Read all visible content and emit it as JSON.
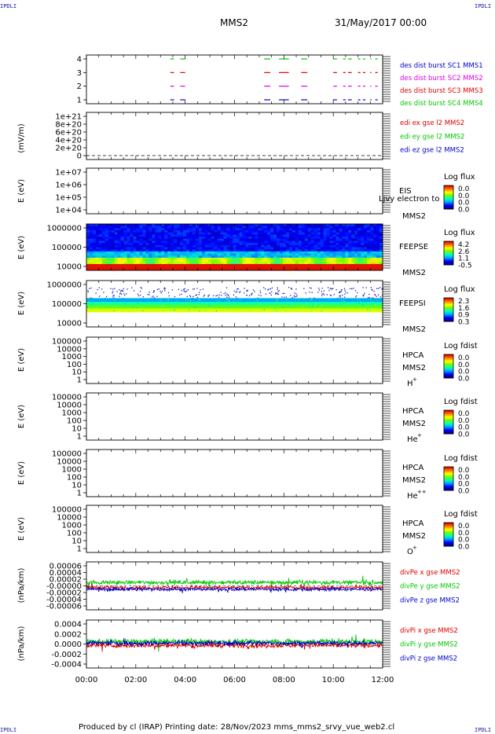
{
  "corner_label": "IPDLI",
  "header": {
    "title": "MMS2",
    "date": "31/May/2017 00:00"
  },
  "footer": {
    "text": "Produced by cl (IRAP)   Printing date: 28/Nov/2023   mms_mms2_srvy_vue_web2.cl"
  },
  "colors": {
    "black": "#000000",
    "red": "#e00000",
    "green": "#00c800",
    "blue": "#0000d0",
    "magenta": "#e000e0"
  },
  "chart_data": {
    "type": "multi-panel time series",
    "x_ticks": [
      "00:00",
      "02:00",
      "04:00",
      "06:00",
      "08:00",
      "10:00",
      "12:00"
    ],
    "xlim_hours": [
      0,
      12
    ],
    "panels": [
      {
        "id": "burst",
        "type": "line",
        "ticks": [
          "4",
          "3",
          "2",
          "1"
        ],
        "legend": [
          {
            "text": "des dist burst SC1 MMS1",
            "color": "#0000d0"
          },
          {
            "text": "des dist burst SC2 MMS2",
            "color": "#e000e0"
          },
          {
            "text": "des dist burst SC3 MMS3",
            "color": "#e00000"
          },
          {
            "text": "des dist burst SC4 MMS4",
            "color": "#00c800"
          }
        ],
        "burst_intervals_hours": [
          [
            3.4,
            3.55
          ],
          [
            3.8,
            4.0
          ],
          [
            7.2,
            7.45
          ],
          [
            7.8,
            8.2
          ],
          [
            8.7,
            8.95
          ],
          [
            10.0,
            10.15
          ],
          [
            10.4,
            10.5
          ],
          [
            10.6,
            10.75
          ],
          [
            11.0,
            11.1
          ],
          [
            11.2,
            11.3
          ],
          [
            11.5,
            11.55
          ],
          [
            11.7,
            11.8
          ]
        ]
      },
      {
        "id": "efield",
        "type": "line",
        "ylabel": "(mV/m)",
        "ticks": [
          "1e+21",
          "8e+20",
          "6e+20",
          "4e+20",
          "2e+20",
          "0"
        ],
        "legend": [
          {
            "text": "edi ex gse l2 MMS2",
            "color": "#e00000"
          },
          {
            "text": "edi ey gse l2 MMS2",
            "color": "#00c800"
          },
          {
            "text": "edi ez gse l2 MMS2",
            "color": "#0000d0"
          }
        ]
      },
      {
        "id": "eis",
        "type": "heatmap",
        "ylabel": "E (eV)",
        "ticks": [
          "1e+07",
          "1e+06",
          "1e+05",
          "1e+04"
        ],
        "labels": [
          "EIS",
          "MMS2"
        ],
        "overlay_text": "Ljvy electron to",
        "cbar_title": "Log flux",
        "cbar_values": [
          "0.0",
          "0.0",
          "0.0",
          "0.0"
        ]
      },
      {
        "id": "feepse",
        "type": "heatmap",
        "ylabel": "E (eV)",
        "ticks": [
          "1000000",
          "100000",
          "10000"
        ],
        "labels": [
          "FEEPSE",
          "MMS2"
        ],
        "cbar_title": "Log flux",
        "cbar_values": [
          "4.2",
          "2.6",
          "1.1",
          "-0.5"
        ]
      },
      {
        "id": "feepsi",
        "type": "heatmap",
        "ylabel": "E (eV)",
        "ticks": [
          "1000000",
          "100000",
          "10000"
        ],
        "labels": [
          "FEEPSI",
          "MMS2"
        ],
        "cbar_title": "Log flux",
        "cbar_values": [
          "2.3",
          "1.6",
          "0.9",
          "0.3"
        ]
      },
      {
        "id": "hpca_h",
        "type": "heatmap",
        "ylabel": "E (eV)",
        "ticks": [
          "100000",
          "10000",
          "1000",
          "100",
          "10",
          "1"
        ],
        "labels": [
          "HPCA",
          "MMS2"
        ],
        "species": "H",
        "charge": "+",
        "cbar_title": "Log fdist",
        "cbar_values": [
          "0.0",
          "0.0",
          "0.0",
          "0.0"
        ]
      },
      {
        "id": "hpca_he",
        "type": "heatmap",
        "ylabel": "E (eV)",
        "ticks": [
          "100000",
          "10000",
          "1000",
          "100",
          "10",
          "1"
        ],
        "labels": [
          "HPCA",
          "MMS2"
        ],
        "species": "He",
        "charge": "+",
        "cbar_title": "Log fdist",
        "cbar_values": [
          "0.0",
          "0.0",
          "0.0",
          "0.0"
        ]
      },
      {
        "id": "hpca_he2",
        "type": "heatmap",
        "ylabel": "E (eV)",
        "ticks": [
          "100000",
          "10000",
          "1000",
          "100",
          "10",
          "1"
        ],
        "labels": [
          "HPCA",
          "MMS2"
        ],
        "species": "He",
        "charge": "++",
        "cbar_title": "Log fdist",
        "cbar_values": [
          "0.0",
          "0.0",
          "0.0",
          "0.0"
        ]
      },
      {
        "id": "hpca_o",
        "type": "heatmap",
        "ylabel": "E (eV)",
        "ticks": [
          "100000",
          "10000",
          "1000",
          "100",
          "10",
          "1"
        ],
        "labels": [
          "HPCA",
          "MMS2"
        ],
        "species": "O",
        "charge": "+",
        "cbar_title": "Log fdist",
        "cbar_values": [
          "0.0",
          "0.0",
          "0.0",
          "0.0"
        ]
      },
      {
        "id": "divpe",
        "type": "line",
        "ylabel": "(nPa/km)",
        "ticks": [
          "0.00006",
          "0.00004",
          "0.00002",
          "-0.00000",
          "-0.00002",
          "-0.00004",
          "-0.00006"
        ],
        "ylim": [
          -7e-05,
          7e-05
        ],
        "legend": [
          {
            "text": "divPe x gse MMS2",
            "color": "#e00000"
          },
          {
            "text": "divPe y gse MMS2",
            "color": "#00c800"
          },
          {
            "text": "divPe z gse MMS2",
            "color": "#0000d0"
          }
        ]
      },
      {
        "id": "divpi",
        "type": "line",
        "ylabel": "(nPa/km)",
        "ticks": [
          "0.0004",
          "0.0002",
          "0.0000",
          "-0.0002",
          "-0.0004"
        ],
        "ylim": [
          -0.0005,
          0.0005
        ],
        "legend": [
          {
            "text": "divPi x gse MMS2",
            "color": "#e00000"
          },
          {
            "text": "divPi y gse MMS2",
            "color": "#00c800"
          },
          {
            "text": "divPi z gse MMS2",
            "color": "#0000d0"
          }
        ]
      }
    ]
  }
}
